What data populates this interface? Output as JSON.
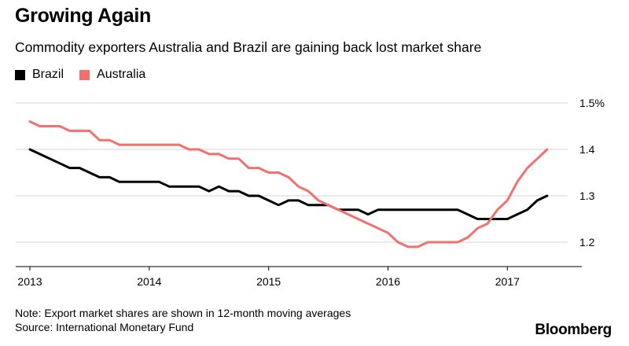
{
  "title": "Growing Again",
  "subtitle": "Commodity exporters Australia and Brazil are gaining back lost market share",
  "legend": [
    {
      "name": "Brazil",
      "color": "#000000"
    },
    {
      "name": "Australia",
      "color": "#f2706e"
    }
  ],
  "note": "Note: Export market shares are shown in 12-month moving averages",
  "source": "Source: International Monetary Fund",
  "brand": "Bloomberg",
  "chart_data": {
    "type": "line",
    "title": "Growing Again",
    "xlabel": "",
    "ylabel": "",
    "xlim": [
      2013.0,
      2017.58
    ],
    "ylim": [
      1.15,
      1.5
    ],
    "x_ticks": [
      "2013",
      "2014",
      "2015",
      "2016",
      "2017"
    ],
    "y_ticks": [
      "1.5%",
      "1.4",
      "1.3",
      "1.2"
    ],
    "y_tick_values": [
      1.5,
      1.4,
      1.3,
      1.2
    ],
    "grid": "horizontal",
    "legend_position": "top-left",
    "series": [
      {
        "name": "Brazil",
        "color": "#000000",
        "points": [
          [
            2013.0,
            1.4
          ],
          [
            2013.083,
            1.39
          ],
          [
            2013.167,
            1.38
          ],
          [
            2013.25,
            1.37
          ],
          [
            2013.333,
            1.36
          ],
          [
            2013.417,
            1.36
          ],
          [
            2013.5,
            1.35
          ],
          [
            2013.583,
            1.34
          ],
          [
            2013.667,
            1.34
          ],
          [
            2013.75,
            1.33
          ],
          [
            2013.833,
            1.33
          ],
          [
            2013.917,
            1.33
          ],
          [
            2014.0,
            1.33
          ],
          [
            2014.083,
            1.33
          ],
          [
            2014.167,
            1.32
          ],
          [
            2014.25,
            1.32
          ],
          [
            2014.333,
            1.32
          ],
          [
            2014.417,
            1.32
          ],
          [
            2014.5,
            1.31
          ],
          [
            2014.583,
            1.32
          ],
          [
            2014.667,
            1.31
          ],
          [
            2014.75,
            1.31
          ],
          [
            2014.833,
            1.3
          ],
          [
            2014.917,
            1.3
          ],
          [
            2015.0,
            1.29
          ],
          [
            2015.083,
            1.28
          ],
          [
            2015.167,
            1.29
          ],
          [
            2015.25,
            1.29
          ],
          [
            2015.333,
            1.28
          ],
          [
            2015.417,
            1.28
          ],
          [
            2015.5,
            1.28
          ],
          [
            2015.583,
            1.27
          ],
          [
            2015.667,
            1.27
          ],
          [
            2015.75,
            1.27
          ],
          [
            2015.833,
            1.26
          ],
          [
            2015.917,
            1.27
          ],
          [
            2016.0,
            1.27
          ],
          [
            2016.083,
            1.27
          ],
          [
            2016.167,
            1.27
          ],
          [
            2016.25,
            1.27
          ],
          [
            2016.333,
            1.27
          ],
          [
            2016.417,
            1.27
          ],
          [
            2016.5,
            1.27
          ],
          [
            2016.583,
            1.27
          ],
          [
            2016.667,
            1.26
          ],
          [
            2016.75,
            1.25
          ],
          [
            2016.833,
            1.25
          ],
          [
            2016.917,
            1.25
          ],
          [
            2017.0,
            1.25
          ],
          [
            2017.083,
            1.26
          ],
          [
            2017.167,
            1.27
          ],
          [
            2017.25,
            1.29
          ],
          [
            2017.333,
            1.3
          ]
        ]
      },
      {
        "name": "Australia",
        "color": "#f2706e",
        "points": [
          [
            2013.0,
            1.46
          ],
          [
            2013.083,
            1.45
          ],
          [
            2013.167,
            1.45
          ],
          [
            2013.25,
            1.45
          ],
          [
            2013.333,
            1.44
          ],
          [
            2013.417,
            1.44
          ],
          [
            2013.5,
            1.44
          ],
          [
            2013.583,
            1.42
          ],
          [
            2013.667,
            1.42
          ],
          [
            2013.75,
            1.41
          ],
          [
            2013.833,
            1.41
          ],
          [
            2013.917,
            1.41
          ],
          [
            2014.0,
            1.41
          ],
          [
            2014.083,
            1.41
          ],
          [
            2014.167,
            1.41
          ],
          [
            2014.25,
            1.41
          ],
          [
            2014.333,
            1.4
          ],
          [
            2014.417,
            1.4
          ],
          [
            2014.5,
            1.39
          ],
          [
            2014.583,
            1.39
          ],
          [
            2014.667,
            1.38
          ],
          [
            2014.75,
            1.38
          ],
          [
            2014.833,
            1.36
          ],
          [
            2014.917,
            1.36
          ],
          [
            2015.0,
            1.35
          ],
          [
            2015.083,
            1.35
          ],
          [
            2015.167,
            1.34
          ],
          [
            2015.25,
            1.32
          ],
          [
            2015.333,
            1.31
          ],
          [
            2015.417,
            1.29
          ],
          [
            2015.5,
            1.28
          ],
          [
            2015.583,
            1.27
          ],
          [
            2015.667,
            1.26
          ],
          [
            2015.75,
            1.25
          ],
          [
            2015.833,
            1.24
          ],
          [
            2015.917,
            1.23
          ],
          [
            2016.0,
            1.22
          ],
          [
            2016.083,
            1.2
          ],
          [
            2016.167,
            1.19
          ],
          [
            2016.25,
            1.19
          ],
          [
            2016.333,
            1.2
          ],
          [
            2016.417,
            1.2
          ],
          [
            2016.5,
            1.2
          ],
          [
            2016.583,
            1.2
          ],
          [
            2016.667,
            1.21
          ],
          [
            2016.75,
            1.23
          ],
          [
            2016.833,
            1.24
          ],
          [
            2016.917,
            1.27
          ],
          [
            2017.0,
            1.29
          ],
          [
            2017.083,
            1.33
          ],
          [
            2017.167,
            1.36
          ],
          [
            2017.25,
            1.38
          ],
          [
            2017.333,
            1.4
          ]
        ]
      }
    ]
  }
}
